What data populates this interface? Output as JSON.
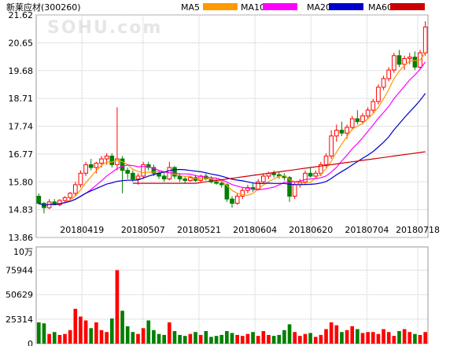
{
  "chart_data": [
    {
      "type": "candlestick",
      "title": "新莱应材(300260)",
      "watermark": "SOHU.com",
      "legend": [
        {
          "name": "MA5",
          "color": "#ff9900"
        },
        {
          "name": "MA10",
          "color": "#ff00ff"
        },
        {
          "name": "MA20",
          "color": "#0000cc"
        },
        {
          "name": "MA60",
          "color": "#cc0000"
        }
      ],
      "ylim": [
        13.86,
        21.62
      ],
      "yticks": [
        "21.62",
        "20.65",
        "19.68",
        "18.71",
        "17.74",
        "16.77",
        "15.80",
        "14.83",
        "13.86"
      ],
      "xticks": [
        "20180419",
        "20180507",
        "20180521",
        "20180604",
        "20180620",
        "20180704",
        "20180718"
      ],
      "up_color": "#ff0000",
      "down_color": "#008000",
      "ohlc": [
        [
          15.3,
          15.4,
          15.0,
          15.05
        ],
        [
          15.05,
          15.1,
          14.7,
          14.9
        ],
        [
          14.9,
          15.2,
          14.85,
          15.1
        ],
        [
          15.1,
          15.2,
          15.0,
          15.0
        ],
        [
          15.0,
          15.2,
          14.95,
          15.15
        ],
        [
          15.15,
          15.3,
          15.05,
          15.25
        ],
        [
          15.25,
          15.45,
          15.15,
          15.4
        ],
        [
          15.4,
          15.8,
          15.3,
          15.7
        ],
        [
          15.7,
          16.2,
          15.6,
          16.1
        ],
        [
          16.1,
          16.5,
          16.0,
          16.4
        ],
        [
          16.4,
          16.6,
          16.2,
          16.3
        ],
        [
          16.3,
          16.5,
          16.1,
          16.45
        ],
        [
          16.45,
          16.7,
          16.3,
          16.6
        ],
        [
          16.6,
          16.8,
          16.4,
          16.7
        ],
        [
          16.7,
          16.8,
          16.3,
          16.4
        ],
        [
          16.4,
          18.4,
          16.2,
          16.6
        ],
        [
          16.6,
          16.7,
          15.4,
          16.2
        ],
        [
          16.2,
          16.3,
          15.9,
          16.1
        ],
        [
          16.1,
          16.2,
          15.8,
          15.9
        ],
        [
          15.9,
          16.1,
          15.7,
          16.0
        ],
        [
          16.0,
          16.5,
          15.9,
          16.4
        ],
        [
          16.4,
          16.5,
          16.2,
          16.3
        ],
        [
          16.3,
          16.4,
          16.0,
          16.1
        ],
        [
          16.1,
          16.2,
          15.9,
          16.0
        ],
        [
          16.0,
          16.1,
          15.8,
          15.9
        ],
        [
          15.9,
          16.5,
          15.85,
          16.3
        ],
        [
          16.3,
          16.35,
          15.9,
          16.0
        ],
        [
          16.0,
          16.1,
          15.8,
          15.9
        ],
        [
          15.9,
          16.0,
          15.75,
          15.85
        ],
        [
          15.85,
          16.0,
          15.8,
          15.95
        ],
        [
          15.95,
          16.05,
          15.8,
          15.85
        ],
        [
          15.85,
          16.05,
          15.8,
          16.0
        ],
        [
          16.0,
          16.1,
          15.85,
          15.9
        ],
        [
          15.9,
          16.0,
          15.75,
          15.8
        ],
        [
          15.8,
          15.9,
          15.7,
          15.75
        ],
        [
          15.75,
          15.85,
          15.6,
          15.7
        ],
        [
          15.7,
          15.75,
          15.1,
          15.2
        ],
        [
          15.2,
          15.3,
          14.9,
          15.05
        ],
        [
          15.05,
          15.4,
          15.0,
          15.3
        ],
        [
          15.3,
          15.6,
          15.2,
          15.5
        ],
        [
          15.5,
          15.7,
          15.4,
          15.6
        ],
        [
          15.6,
          15.75,
          15.45,
          15.55
        ],
        [
          15.55,
          15.9,
          15.5,
          15.8
        ],
        [
          15.8,
          16.1,
          15.75,
          16.0
        ],
        [
          16.0,
          16.15,
          15.9,
          16.1
        ],
        [
          16.1,
          16.2,
          15.95,
          16.05
        ],
        [
          16.05,
          16.15,
          15.9,
          16.0
        ],
        [
          16.0,
          16.1,
          15.85,
          15.95
        ],
        [
          15.95,
          16.0,
          15.1,
          15.3
        ],
        [
          15.3,
          15.8,
          15.2,
          15.7
        ],
        [
          15.7,
          15.9,
          15.6,
          15.8
        ],
        [
          15.8,
          16.2,
          15.7,
          16.1
        ],
        [
          16.1,
          16.3,
          15.95,
          16.0
        ],
        [
          16.0,
          16.2,
          15.9,
          16.1
        ],
        [
          16.1,
          16.5,
          16.0,
          16.4
        ],
        [
          16.4,
          16.8,
          16.3,
          16.7
        ],
        [
          16.7,
          17.6,
          16.6,
          17.4
        ],
        [
          17.4,
          17.8,
          17.2,
          17.6
        ],
        [
          17.6,
          17.9,
          17.4,
          17.5
        ],
        [
          17.5,
          17.8,
          17.3,
          17.7
        ],
        [
          17.7,
          18.1,
          17.6,
          18.0
        ],
        [
          18.0,
          18.3,
          17.8,
          17.9
        ],
        [
          17.9,
          18.2,
          17.8,
          18.1
        ],
        [
          18.1,
          18.4,
          18.0,
          18.3
        ],
        [
          18.3,
          18.7,
          18.2,
          18.6
        ],
        [
          18.6,
          19.2,
          18.5,
          19.1
        ],
        [
          19.1,
          19.5,
          19.0,
          19.4
        ],
        [
          19.4,
          19.8,
          19.3,
          19.7
        ],
        [
          19.7,
          20.3,
          19.6,
          20.2
        ],
        [
          20.2,
          20.4,
          19.8,
          19.9
        ],
        [
          19.9,
          20.2,
          19.7,
          20.1
        ],
        [
          20.1,
          20.3,
          19.9,
          20.15
        ],
        [
          20.15,
          20.35,
          19.7,
          19.8
        ],
        [
          19.8,
          20.4,
          19.75,
          20.3
        ],
        [
          20.3,
          21.4,
          20.2,
          21.2
        ]
      ],
      "volume_panel": {
        "unit": "10万",
        "ylim": [
          0,
          100000
        ],
        "yticks": [
          "75944",
          "50629",
          "25314",
          "0"
        ],
        "values": [
          22000,
          21000,
          10000,
          12000,
          9000,
          10000,
          14000,
          36000,
          28000,
          24000,
          16000,
          22000,
          14000,
          12000,
          26000,
          76000,
          34000,
          18000,
          12000,
          10000,
          16000,
          24000,
          14000,
          10000,
          9000,
          22000,
          13000,
          9000,
          8000,
          10000,
          12000,
          9000,
          13000,
          7000,
          8000,
          9000,
          13000,
          11000,
          9000,
          8000,
          10000,
          12000,
          8000,
          13000,
          9000,
          8000,
          9000,
          14000,
          20000,
          12000,
          8000,
          10000,
          11000,
          7000,
          9000,
          15000,
          22000,
          19000,
          12000,
          14000,
          18000,
          15000,
          11000,
          12000,
          12000,
          10000,
          15000,
          12000,
          8000,
          13000,
          15000,
          12000,
          10000,
          9000,
          12000
        ]
      }
    }
  ]
}
